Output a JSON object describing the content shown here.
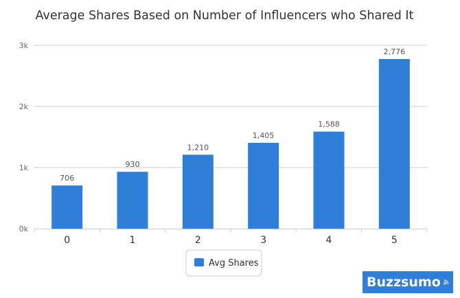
{
  "chart_data": {
    "type": "bar",
    "title": "Average Shares Based on Number of Influencers who Shared It",
    "xlabel": "",
    "ylabel": "",
    "categories": [
      "0",
      "1",
      "2",
      "3",
      "4",
      "5"
    ],
    "series": [
      {
        "name": "Avg Shares",
        "values": [
          706,
          930,
          1210,
          1405,
          1588,
          2776
        ],
        "value_labels": [
          "706",
          "930",
          "1,210",
          "1,405",
          "1,588",
          "2,776"
        ],
        "color": "#2f7fd8"
      }
    ],
    "ylim": [
      0,
      3000
    ],
    "yticks": [
      {
        "value": 0,
        "label": "0k"
      },
      {
        "value": 1000,
        "label": "1k"
      },
      {
        "value": 2000,
        "label": "2k"
      },
      {
        "value": 3000,
        "label": "3k"
      }
    ],
    "grid": true,
    "legend_position": "bottom-center"
  },
  "branding": {
    "logo_text": "Buzzsumo",
    "logo_icon": "signal-waves-icon",
    "logo_color": "#2f7fd8"
  }
}
